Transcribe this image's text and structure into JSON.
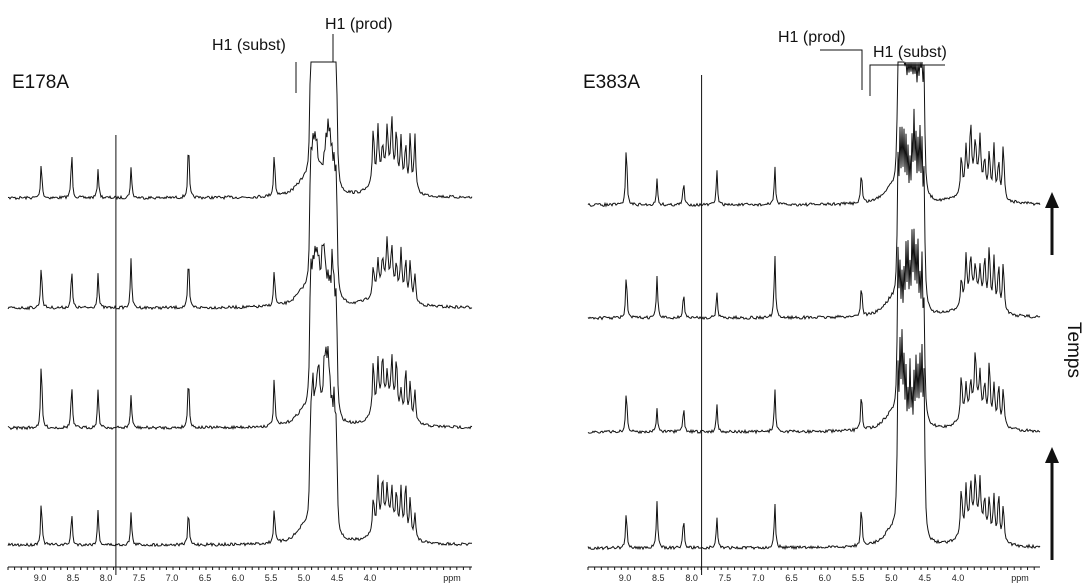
{
  "panels": [
    {
      "label": "E178A",
      "annotations": [
        "H1 (subst)",
        "H1 (prod)"
      ],
      "axis": {
        "ticks": [
          "9.0",
          "8.5",
          "8.0",
          "7.5",
          "7.0",
          "6.5",
          "6.0",
          "5.5",
          "5.0",
          "4.5",
          "4.0"
        ],
        "unit": "ppm"
      }
    },
    {
      "label": "E383A",
      "annotations": [
        "H1 (prod)",
        "H1 (subst)"
      ],
      "axis": {
        "ticks": [
          "9.0",
          "8.5",
          "8.0",
          "7.5",
          "7.0",
          "6.5",
          "6.0",
          "5.5",
          "5.0",
          "4.5",
          "4.0"
        ],
        "unit": "ppm"
      }
    }
  ],
  "side_label": "Temps"
}
